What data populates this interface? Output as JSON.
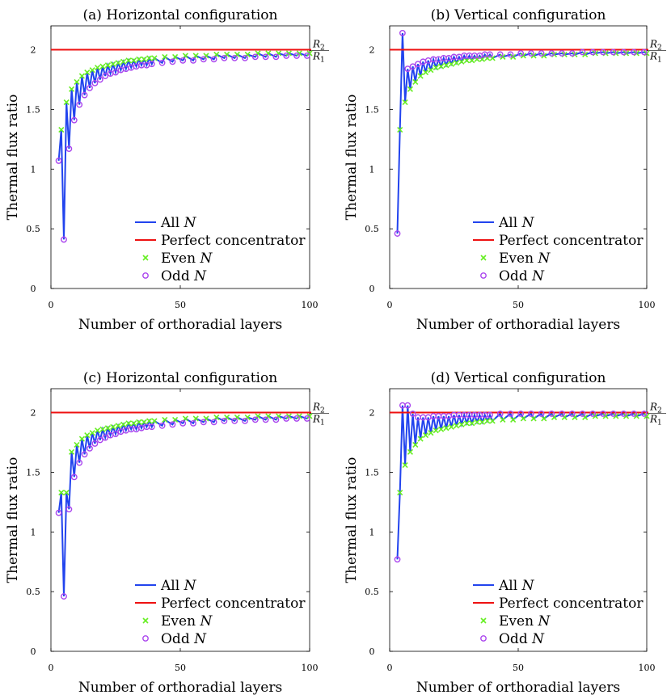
{
  "colors": {
    "all": "#2244ee",
    "perfect": "#ee1111",
    "even": "#66ee22",
    "odd": "#aa44ee"
  },
  "chart_data": [
    {
      "type": "line",
      "title": "(a) Horizontal configuration",
      "xlabel": "Number of orthoradial layers",
      "ylabel": "Thermal flux ratio",
      "xlim": [
        0,
        100
      ],
      "ylim": [
        0,
        2.2
      ],
      "xticks": [
        "0",
        "50",
        "100"
      ],
      "yticks": [
        "0",
        "0.5",
        "1",
        "1.5",
        "2"
      ],
      "perfect_concentrator": 2.0,
      "r_labels": [
        "R2",
        "R1"
      ],
      "legend": [
        "All N",
        "Perfect concentrator",
        "Even N",
        "Odd N"
      ],
      "legend_position": "bottom-center",
      "series": [
        {
          "name": "Even N",
          "x": [
            4,
            6,
            8,
            10,
            12,
            14,
            16,
            18,
            20,
            22,
            24,
            26,
            28,
            30,
            32,
            34,
            36,
            38,
            40,
            44,
            48,
            52,
            56,
            60,
            64,
            68,
            72,
            76,
            80,
            84,
            88,
            92,
            96,
            100
          ],
          "values": [
            1.33,
            1.56,
            1.67,
            1.73,
            1.78,
            1.81,
            1.83,
            1.85,
            1.86,
            1.87,
            1.88,
            1.89,
            1.9,
            1.91,
            1.91,
            1.92,
            1.92,
            1.93,
            1.93,
            1.94,
            1.94,
            1.95,
            1.95,
            1.95,
            1.96,
            1.96,
            1.96,
            1.96,
            1.97,
            1.97,
            1.97,
            1.97,
            1.97,
            1.97
          ]
        },
        {
          "name": "Odd N",
          "x": [
            3,
            5,
            7,
            9,
            11,
            13,
            15,
            17,
            19,
            21,
            23,
            25,
            27,
            29,
            31,
            33,
            35,
            37,
            39,
            43,
            47,
            51,
            55,
            59,
            63,
            67,
            71,
            75,
            79,
            83,
            87,
            91,
            95,
            99
          ],
          "values": [
            1.07,
            0.41,
            1.17,
            1.41,
            1.54,
            1.62,
            1.68,
            1.72,
            1.75,
            1.78,
            1.8,
            1.81,
            1.83,
            1.84,
            1.85,
            1.86,
            1.87,
            1.87,
            1.88,
            1.89,
            1.9,
            1.91,
            1.91,
            1.92,
            1.92,
            1.93,
            1.93,
            1.93,
            1.94,
            1.94,
            1.94,
            1.95,
            1.95,
            1.95
          ]
        }
      ]
    },
    {
      "type": "line",
      "title": "(b) Vertical configuration",
      "xlabel": "Number of orthoradial layers",
      "ylabel": "Thermal flux ratio",
      "xlim": [
        0,
        100
      ],
      "ylim": [
        0,
        2.2
      ],
      "xticks": [
        "0",
        "50",
        "100"
      ],
      "yticks": [
        "0",
        "0.5",
        "1",
        "1.5",
        "2"
      ],
      "perfect_concentrator": 2.0,
      "r_labels": [
        "R2",
        "R1"
      ],
      "legend": [
        "All N",
        "Perfect concentrator",
        "Even N",
        "Odd N"
      ],
      "legend_position": "bottom-center",
      "series": [
        {
          "name": "Even N",
          "x": [
            4,
            6,
            8,
            10,
            12,
            14,
            16,
            18,
            20,
            22,
            24,
            26,
            28,
            30,
            32,
            34,
            36,
            38,
            40,
            44,
            48,
            52,
            56,
            60,
            64,
            68,
            72,
            76,
            80,
            84,
            88,
            92,
            96,
            100
          ],
          "values": [
            1.33,
            1.56,
            1.67,
            1.73,
            1.78,
            1.81,
            1.83,
            1.85,
            1.86,
            1.87,
            1.88,
            1.89,
            1.9,
            1.91,
            1.91,
            1.92,
            1.92,
            1.93,
            1.93,
            1.94,
            1.94,
            1.95,
            1.95,
            1.95,
            1.96,
            1.96,
            1.96,
            1.96,
            1.97,
            1.97,
            1.97,
            1.97,
            1.97,
            1.97
          ]
        },
        {
          "name": "Odd N",
          "x": [
            3,
            5,
            7,
            9,
            11,
            13,
            15,
            17,
            19,
            21,
            23,
            25,
            27,
            29,
            31,
            33,
            35,
            37,
            39,
            43,
            47,
            51,
            55,
            59,
            63,
            67,
            71,
            75,
            79,
            83,
            87,
            91,
            95,
            99
          ],
          "values": [
            0.46,
            2.14,
            1.84,
            1.86,
            1.88,
            1.9,
            1.91,
            1.92,
            1.92,
            1.93,
            1.93,
            1.94,
            1.94,
            1.95,
            1.95,
            1.95,
            1.95,
            1.96,
            1.96,
            1.96,
            1.96,
            1.97,
            1.97,
            1.97,
            1.97,
            1.97,
            1.97,
            1.98,
            1.98,
            1.98,
            1.98,
            1.98,
            1.98,
            1.98
          ]
        }
      ]
    },
    {
      "type": "line",
      "title": "(c) Horizontal configuration",
      "xlabel": "Number of orthoradial layers",
      "ylabel": "Thermal flux ratio",
      "xlim": [
        0,
        100
      ],
      "ylim": [
        0,
        2.2
      ],
      "xticks": [
        "0",
        "50",
        "100"
      ],
      "yticks": [
        "0",
        "0.5",
        "1",
        "1.5",
        "2"
      ],
      "perfect_concentrator": 2.0,
      "r_labels": [
        "R2",
        "R1"
      ],
      "legend": [
        "All N",
        "Perfect concentrator",
        "Even N",
        "Odd N"
      ],
      "legend_position": "bottom-center",
      "series": [
        {
          "name": "Even N",
          "x": [
            4,
            6,
            8,
            10,
            12,
            14,
            16,
            18,
            20,
            22,
            24,
            26,
            28,
            30,
            32,
            34,
            36,
            38,
            40,
            44,
            48,
            52,
            56,
            60,
            64,
            68,
            72,
            76,
            80,
            84,
            88,
            92,
            96,
            100
          ],
          "values": [
            1.33,
            1.33,
            1.67,
            1.73,
            1.78,
            1.81,
            1.83,
            1.85,
            1.86,
            1.87,
            1.88,
            1.89,
            1.9,
            1.91,
            1.91,
            1.92,
            1.92,
            1.93,
            1.93,
            1.94,
            1.94,
            1.95,
            1.95,
            1.95,
            1.96,
            1.96,
            1.96,
            1.96,
            1.97,
            1.97,
            1.97,
            1.97,
            1.97,
            1.97
          ]
        },
        {
          "name": "Odd N",
          "x": [
            3,
            5,
            7,
            9,
            11,
            13,
            15,
            17,
            19,
            21,
            23,
            25,
            27,
            29,
            31,
            33,
            35,
            37,
            39,
            43,
            47,
            51,
            55,
            59,
            63,
            67,
            71,
            75,
            79,
            83,
            87,
            91,
            95,
            99
          ],
          "values": [
            1.16,
            0.46,
            1.19,
            1.46,
            1.58,
            1.65,
            1.7,
            1.74,
            1.77,
            1.79,
            1.81,
            1.82,
            1.84,
            1.85,
            1.86,
            1.86,
            1.87,
            1.88,
            1.88,
            1.89,
            1.9,
            1.91,
            1.91,
            1.92,
            1.92,
            1.93,
            1.93,
            1.93,
            1.94,
            1.94,
            1.94,
            1.95,
            1.95,
            1.95
          ]
        }
      ]
    },
    {
      "type": "line",
      "title": "(d) Vertical configuration",
      "xlabel": "Number of orthoradial layers",
      "ylabel": "Thermal flux ratio",
      "xlim": [
        0,
        100
      ],
      "ylim": [
        0,
        2.2
      ],
      "xticks": [
        "0",
        "50",
        "100"
      ],
      "yticks": [
        "0",
        "0.5",
        "1",
        "1.5",
        "2"
      ],
      "perfect_concentrator": 2.0,
      "r_labels": [
        "R2",
        "R1"
      ],
      "legend": [
        "All N",
        "Perfect concentrator",
        "Even N",
        "Odd N"
      ],
      "legend_position": "bottom-center",
      "series": [
        {
          "name": "Even N",
          "x": [
            4,
            6,
            8,
            10,
            12,
            14,
            16,
            18,
            20,
            22,
            24,
            26,
            28,
            30,
            32,
            34,
            36,
            38,
            40,
            44,
            48,
            52,
            56,
            60,
            64,
            68,
            72,
            76,
            80,
            84,
            88,
            92,
            96,
            100
          ],
          "values": [
            1.33,
            1.56,
            1.67,
            1.73,
            1.78,
            1.81,
            1.83,
            1.85,
            1.86,
            1.87,
            1.88,
            1.89,
            1.9,
            1.91,
            1.91,
            1.92,
            1.92,
            1.93,
            1.93,
            1.94,
            1.94,
            1.95,
            1.95,
            1.95,
            1.96,
            1.96,
            1.96,
            1.96,
            1.97,
            1.97,
            1.97,
            1.97,
            1.97,
            1.97
          ]
        },
        {
          "name": "Odd N",
          "x": [
            3,
            5,
            7,
            9,
            11,
            13,
            15,
            17,
            19,
            21,
            23,
            25,
            27,
            29,
            31,
            33,
            35,
            37,
            39,
            43,
            47,
            51,
            55,
            59,
            63,
            67,
            71,
            75,
            79,
            83,
            87,
            91,
            95,
            99
          ],
          "values": [
            0.77,
            2.06,
            2.06,
            1.99,
            1.96,
            1.96,
            1.96,
            1.97,
            1.97,
            1.97,
            1.97,
            1.98,
            1.98,
            1.98,
            1.98,
            1.98,
            1.98,
            1.98,
            1.98,
            1.99,
            1.99,
            1.99,
            1.99,
            1.99,
            1.99,
            1.99,
            1.99,
            1.99,
            1.99,
            1.99,
            1.99,
            1.99,
            1.99,
            1.99
          ]
        }
      ]
    }
  ]
}
